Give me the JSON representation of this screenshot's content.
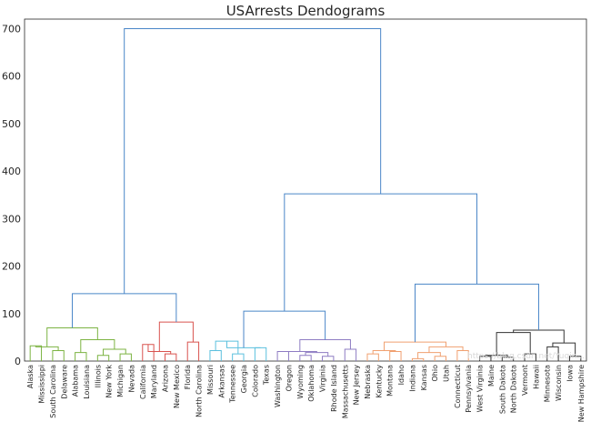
{
  "chart_data": {
    "type": "dendrogram",
    "title": "USArrests Dendograms",
    "xlabel": "",
    "ylabel": "",
    "ylim": [
      0,
      720
    ],
    "yticks": [
      0,
      100,
      200,
      300,
      400,
      500,
      600,
      700
    ],
    "grid": false,
    "leaves": [
      "Alaska",
      "Mississippi",
      "South Carolina",
      "Delaware",
      "Alabama",
      "Louisiana",
      "Illinois",
      "New York",
      "Michigan",
      "Nevada",
      "California",
      "Maryland",
      "Arizona",
      "New Mexico",
      "Florida",
      "North Carolina",
      "Missouri",
      "Arkansas",
      "Tennessee",
      "Georgia",
      "Colorado",
      "Texas",
      "Washington",
      "Oregon",
      "Wyoming",
      "Oklahoma",
      "Virginia",
      "Rhode Island",
      "Massachusetts",
      "New Jersey",
      "Nebraska",
      "Kentucky",
      "Montana",
      "Idaho",
      "Indiana",
      "Kansas",
      "Ohio",
      "Utah",
      "Connecticut",
      "Pennsylvania",
      "West Virginia",
      "Maine",
      "South Dakota",
      "North Dakota",
      "Vermont",
      "Hawaii",
      "Minnesota",
      "Wisconsin",
      "Iowa",
      "New Hampshire"
    ],
    "clusters": [
      {
        "name": "cluster-green",
        "color": "#7cb342",
        "merges": [
          {
            "children": [
              "Alaska",
              "Mississippi"
            ],
            "height": 32
          },
          {
            "children": [
              "South Carolina",
              "Delaware"
            ],
            "height": 22
          },
          {
            "children": [
              "c0",
              "c1"
            ],
            "height": 30
          },
          {
            "children": [
              "Alabama",
              "Louisiana"
            ],
            "height": 18
          },
          {
            "children": [
              "Illinois",
              "New York"
            ],
            "height": 12
          },
          {
            "children": [
              "Michigan",
              "Nevada"
            ],
            "height": 15
          },
          {
            "children": [
              "c4",
              "c5"
            ],
            "height": 25
          },
          {
            "children": [
              "c3",
              "c6"
            ],
            "height": 45
          },
          {
            "children": [
              "c2",
              "c7"
            ],
            "height": 70
          }
        ]
      },
      {
        "name": "cluster-red",
        "color": "#d9534f",
        "merges": [
          {
            "children": [
              "California",
              "Maryland"
            ],
            "height": 35
          },
          {
            "children": [
              "Arizona",
              "New Mexico"
            ],
            "height": 15
          },
          {
            "children": [
              "c0",
              "c1"
            ],
            "height": 20
          },
          {
            "children": [
              "Florida",
              "North Carolina"
            ],
            "height": 40
          },
          {
            "children": [
              "c2",
              "c3"
            ],
            "height": 82
          }
        ]
      },
      {
        "name": "cluster-cyan",
        "color": "#5bc0de",
        "merges": [
          {
            "children": [
              "Missouri",
              "Arkansas"
            ],
            "height": 22
          },
          {
            "children": [
              "Tennessee",
              "Georgia"
            ],
            "height": 15
          },
          {
            "children": [
              "c0",
              "c1"
            ],
            "height": 42
          },
          {
            "children": [
              "Colorado",
              "Texas"
            ],
            "height": 28
          },
          {
            "children": [
              "c2",
              "c3"
            ],
            "height": 28
          }
        ]
      },
      {
        "name": "cluster-purple",
        "color": "#8e7cc3",
        "merges": [
          {
            "children": [
              "Washington",
              "Oregon"
            ],
            "height": 20
          },
          {
            "children": [
              "Wyoming",
              "Oklahoma"
            ],
            "height": 12
          },
          {
            "children": [
              "Virginia",
              "Rhode Island"
            ],
            "height": 10
          },
          {
            "children": [
              "c1",
              "c2"
            ],
            "height": 18
          },
          {
            "children": [
              "c0",
              "c3"
            ],
            "height": 20
          },
          {
            "children": [
              "Massachusetts",
              "New Jersey"
            ],
            "height": 25
          },
          {
            "children": [
              "c4",
              "c5"
            ],
            "height": 45
          }
        ]
      },
      {
        "name": "cluster-orange",
        "color": "#f0a070",
        "merges": [
          {
            "children": [
              "Nebraska",
              "Kentucky"
            ],
            "height": 15
          },
          {
            "children": [
              "Montana",
              "Idaho"
            ],
            "height": 20
          },
          {
            "children": [
              "c0",
              "c1"
            ],
            "height": 22
          },
          {
            "children": [
              "Indiana",
              "Kansas"
            ],
            "height": 5
          },
          {
            "children": [
              "Ohio",
              "Utah"
            ],
            "height": 10
          },
          {
            "children": [
              "c3",
              "c4"
            ],
            "height": 18
          },
          {
            "children": [
              "Connecticut",
              "Pennsylvania"
            ],
            "height": 22
          },
          {
            "children": [
              "c5",
              "c6"
            ],
            "height": 30
          },
          {
            "children": [
              "c2",
              "c7"
            ],
            "height": 40
          }
        ]
      },
      {
        "name": "cluster-black",
        "color": "#333333",
        "merges": [
          {
            "children": [
              "West Virginia",
              "Maine"
            ],
            "height": 10
          },
          {
            "children": [
              "South Dakota",
              "North Dakota"
            ],
            "height": 8
          },
          {
            "children": [
              "c0",
              "c1"
            ],
            "height": 12
          },
          {
            "children": [
              "Vermont",
              "Hawaii"
            ],
            "height": 15
          },
          {
            "children": [
              "c2",
              "c3"
            ],
            "height": 60
          },
          {
            "children": [
              "Minnesota",
              "Wisconsin"
            ],
            "height": 30
          },
          {
            "children": [
              "Iowa",
              "New Hampshire"
            ],
            "height": 10
          },
          {
            "children": [
              "c5",
              "c6"
            ],
            "height": 38
          },
          {
            "children": [
              "c4",
              "c7"
            ],
            "height": 65
          }
        ]
      }
    ],
    "top_merges": [
      {
        "children": [
          "cluster-green",
          "cluster-red"
        ],
        "height": 142
      },
      {
        "children": [
          "cluster-cyan",
          "cluster-purple"
        ],
        "height": 105
      },
      {
        "children": [
          "cluster-orange",
          "cluster-black"
        ],
        "height": 162
      },
      {
        "children": [
          "t1",
          "t2"
        ],
        "height": 352
      },
      {
        "children": [
          "t0",
          "t3"
        ],
        "height": 700
      }
    ],
    "top_color": "#4a86c8",
    "watermark": "https://blog.csdn.net/Yuqin..."
  }
}
